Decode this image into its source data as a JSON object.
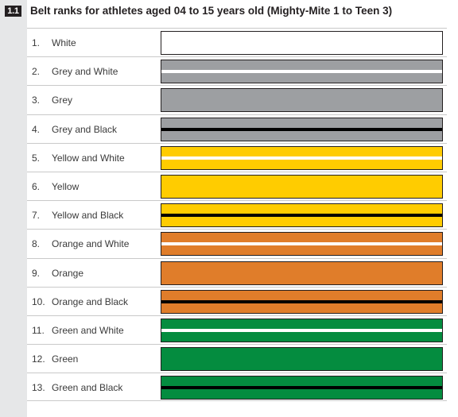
{
  "section": {
    "number": "1.1",
    "title": "Belt ranks for athletes aged 04 to 15 years old (Mighty-Mite 1 to Teen 3)"
  },
  "colors": {
    "White": "#ffffff",
    "Grey": "#9d9fa2",
    "Black": "#000000",
    "Yellow": "#ffcc00",
    "Orange": "#e07d2a",
    "Green": "#048c3f"
  },
  "ranks": [
    {
      "num": "1.",
      "name": "White",
      "base": "White",
      "stripe": ""
    },
    {
      "num": "2.",
      "name": "Grey and White",
      "base": "Grey",
      "stripe": "White"
    },
    {
      "num": "3.",
      "name": "Grey",
      "base": "Grey",
      "stripe": ""
    },
    {
      "num": "4.",
      "name": "Grey and Black",
      "base": "Grey",
      "stripe": "Black"
    },
    {
      "num": "5.",
      "name": "Yellow and White",
      "base": "Yellow",
      "stripe": "White"
    },
    {
      "num": "6.",
      "name": "Yellow",
      "base": "Yellow",
      "stripe": ""
    },
    {
      "num": "7.",
      "name": "Yellow and Black",
      "base": "Yellow",
      "stripe": "Black"
    },
    {
      "num": "8.",
      "name": "Orange and White",
      "base": "Orange",
      "stripe": "White"
    },
    {
      "num": "9.",
      "name": "Orange",
      "base": "Orange",
      "stripe": ""
    },
    {
      "num": "10.",
      "name": "Orange and Black",
      "base": "Orange",
      "stripe": "Black"
    },
    {
      "num": "11.",
      "name": "Green and White",
      "base": "Green",
      "stripe": "White"
    },
    {
      "num": "12.",
      "name": "Green",
      "base": "Green",
      "stripe": ""
    },
    {
      "num": "13.",
      "name": "Green and Black",
      "base": "Green",
      "stripe": "Black"
    }
  ]
}
